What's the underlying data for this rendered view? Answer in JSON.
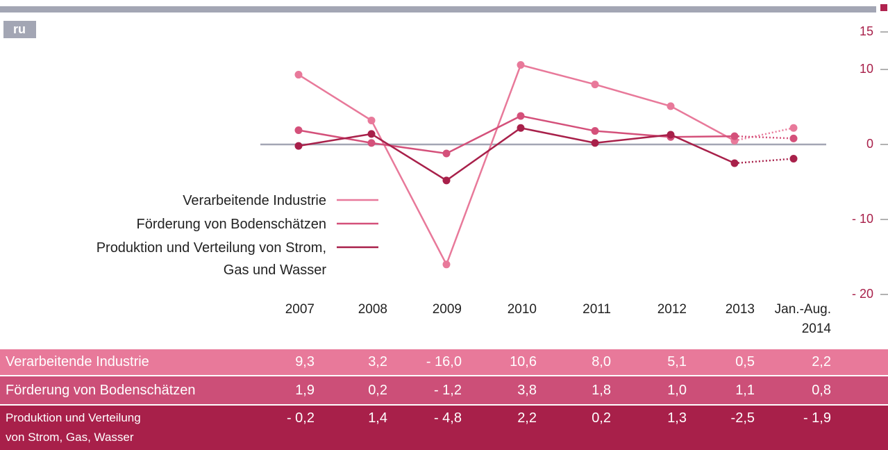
{
  "tag": "ru",
  "chart_data": {
    "type": "line",
    "categories": [
      "2007",
      "2008",
      "2009",
      "2010",
      "2011",
      "2012",
      "2013",
      "Jan.-Aug.\n2014"
    ],
    "series": [
      {
        "name": "Verarbeitende Industrie",
        "color": "#e8799a",
        "values": [
          9.3,
          3.2,
          -16.0,
          10.6,
          8.0,
          5.1,
          0.5,
          2.2
        ]
      },
      {
        "name": "Förderung von Bodenschätzen",
        "color": "#d4507a",
        "values": [
          1.9,
          0.2,
          -1.2,
          3.8,
          1.8,
          1.0,
          1.1,
          0.8
        ]
      },
      {
        "name": "Produktion und Verteilung von Strom,\nGas und Wasser",
        "color": "#a8204a",
        "values": [
          -0.2,
          1.4,
          -4.8,
          2.2,
          0.2,
          1.3,
          -2.5,
          -1.9
        ]
      }
    ],
    "ylim": [
      -20,
      15
    ],
    "yticks": [
      15,
      10,
      0,
      {
        "value": -10,
        "label": "- 10"
      },
      {
        "value": -20,
        "label": "- 20"
      }
    ]
  },
  "table": {
    "rows": [
      {
        "label": "Verarbeitende Industrie",
        "cells": [
          "9,3",
          "3,2",
          "- 16,0",
          "10,6",
          "8,0",
          "5,1",
          "0,5",
          "2,2"
        ]
      },
      {
        "label": "Förderung von Bodenschätzen",
        "cells": [
          "1,9",
          "0,2",
          "- 1,2",
          "3,8",
          "1,8",
          "1,0",
          "1,1",
          "0,8"
        ]
      },
      {
        "label": "Produktion und Verteilung\nvon Strom, Gas, Wasser",
        "cells": [
          "- 0,2",
          "1,4",
          "- 4,8",
          "2,2",
          "0,2",
          "1,3",
          "-2,5",
          "- 1,9"
        ]
      }
    ]
  }
}
